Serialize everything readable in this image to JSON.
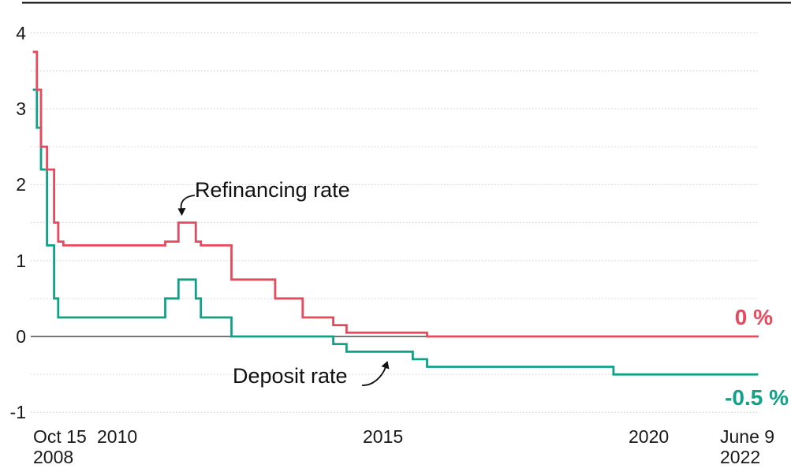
{
  "chart_data": {
    "type": "line",
    "subtype": "step-after",
    "title": "",
    "x_axis": {
      "range_dates": [
        "2008-10-15",
        "2022-06-09"
      ],
      "ticks": [
        {
          "line1": "Oct 15",
          "line2": "2008",
          "date": "2008-10-15",
          "anchor": "start"
        },
        {
          "line1": "2010",
          "line2": "",
          "date": "2010-01-01",
          "anchor": "start"
        },
        {
          "line1": "2015",
          "line2": "",
          "date": "2015-01-01",
          "anchor": "start"
        },
        {
          "line1": "2020",
          "line2": "",
          "date": "2020-01-01",
          "anchor": "start"
        },
        {
          "line1": "June 9",
          "line2": "2022",
          "date": "2022-06-09",
          "anchor": "start-right"
        }
      ]
    },
    "y_axis": {
      "range": [
        -1,
        4
      ],
      "unit": "%",
      "ticks": [
        {
          "label": "4",
          "value": 4
        },
        {
          "label": "3",
          "value": 3
        },
        {
          "label": "2",
          "value": 2
        },
        {
          "label": "1",
          "value": 1
        },
        {
          "label": "0",
          "value": 0
        },
        {
          "label": "-1",
          "value": -1
        }
      ],
      "gridline_values": [
        4,
        3.5,
        3,
        2.5,
        2,
        1.5,
        1,
        0.5,
        -0.5,
        -1
      ],
      "zero_line_value": 0,
      "grid_on": true
    },
    "series": [
      {
        "name": "Deposit rate",
        "color": "#0fa287",
        "end_label": "-0.5 %",
        "end_value": -0.5,
        "points": [
          [
            "2008-10-15",
            3.25
          ],
          [
            "2008-11-12",
            2.75
          ],
          [
            "2008-12-10",
            2.2
          ],
          [
            "2009-01-21",
            1.2
          ],
          [
            "2009-03-11",
            0.5
          ],
          [
            "2009-04-08",
            0.25
          ],
          [
            "2011-04-13",
            0.5
          ],
          [
            "2011-07-13",
            0.75
          ],
          [
            "2011-11-09",
            0.5
          ],
          [
            "2011-12-14",
            0.25
          ],
          [
            "2012-07-11",
            0.0
          ],
          [
            "2014-06-11",
            -0.1
          ],
          [
            "2014-09-10",
            -0.2
          ],
          [
            "2015-12-09",
            -0.3
          ],
          [
            "2016-03-16",
            -0.4
          ],
          [
            "2019-09-18",
            -0.5
          ],
          [
            "2022-06-09",
            -0.5
          ]
        ]
      },
      {
        "name": "Refinancing rate",
        "color": "#e8495c",
        "end_label": "0 %",
        "end_value": 0,
        "points": [
          [
            "2008-10-15",
            3.75
          ],
          [
            "2008-11-12",
            3.25
          ],
          [
            "2008-12-10",
            2.5
          ],
          [
            "2009-01-21",
            2.2
          ],
          [
            "2009-03-11",
            1.5
          ],
          [
            "2009-04-08",
            1.25
          ],
          [
            "2009-05-13",
            1.2
          ],
          [
            "2011-04-13",
            1.25
          ],
          [
            "2011-07-13",
            1.5
          ],
          [
            "2011-11-09",
            1.25
          ],
          [
            "2011-12-14",
            1.2
          ],
          [
            "2012-07-11",
            0.75
          ],
          [
            "2013-05-08",
            0.5
          ],
          [
            "2013-11-13",
            0.25
          ],
          [
            "2014-06-11",
            0.15
          ],
          [
            "2014-09-10",
            0.05
          ],
          [
            "2016-03-16",
            0.0
          ],
          [
            "2022-06-09",
            0.0
          ]
        ]
      }
    ],
    "annotations": [
      {
        "text": "Refinancing rate",
        "series": "Refinancing rate"
      },
      {
        "text": "Deposit rate",
        "series": "Deposit rate"
      }
    ],
    "legend_position": "annotated-inline",
    "colors": {
      "gridline": "#d6d6d6",
      "zero_line": "#767676",
      "top_rule": "#000000",
      "tick_text": "#191919",
      "annotation_text": "#111111",
      "background": "#ffffff"
    }
  }
}
